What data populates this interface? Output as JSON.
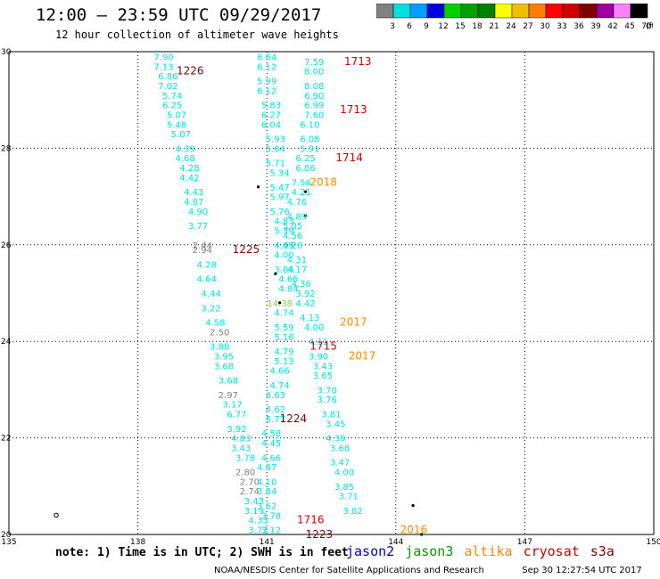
{
  "header": {
    "title": "12:00 – 23:59 UTC 09/29/2017",
    "subtitle": "12 hour collection of altimeter wave heights"
  },
  "colorbar": {
    "labels": [
      "3",
      "6",
      "9",
      "12",
      "15",
      "18",
      "21",
      "24",
      "27",
      "30",
      "33",
      "36",
      "39",
      "42",
      "45",
      "70"
    ],
    "unit": "(ft)",
    "colors": [
      "#808080",
      "#00e0e0",
      "#00a0ff",
      "#0000e0",
      "#00d000",
      "#00a000",
      "#008000",
      "#ffff00",
      "#f0c000",
      "#ff8000",
      "#ff0000",
      "#d00000",
      "#800000",
      "#a000a0",
      "#ff80ff",
      "#000000"
    ]
  },
  "axes": {
    "x_ticks": [
      "135",
      "138",
      "141",
      "144",
      "147",
      "150"
    ],
    "y_ticks": [
      "30",
      "28",
      "26",
      "24",
      "22",
      "20"
    ]
  },
  "legend": {
    "note": "note: 1) Time is in UTC; 2) SWH is in feet",
    "missions": [
      {
        "name": "jason2",
        "color": "#0000cc"
      },
      {
        "name": "jason3",
        "color": "#009900"
      },
      {
        "name": "altika",
        "color": "#ff8800"
      },
      {
        "name": "cryosat",
        "color": "#cc0000"
      },
      {
        "name": "s3a",
        "color": "#800000"
      }
    ]
  },
  "footer": {
    "credit": "NOAA/NESDIS Center for Satellite Applications and Research",
    "timestamp": "Sep 30 12:27:54 UTC 2017"
  },
  "chart_data": {
    "type": "scatter",
    "x_unit": "longitude (°E)",
    "y_unit": "latitude (°N)",
    "xlim": [
      135,
      150
    ],
    "ylim": [
      20,
      30
    ],
    "value_unit": "SWH (ft)",
    "time_labels": [
      {
        "text": "1226",
        "lon": 138.9,
        "lat": 29.6,
        "color": "#800000"
      },
      {
        "text": "1713",
        "lon": 142.8,
        "lat": 29.8,
        "color": "#cc0000"
      },
      {
        "text": "1713",
        "lon": 142.7,
        "lat": 28.8,
        "color": "#cc0000"
      },
      {
        "text": "1714",
        "lon": 142.6,
        "lat": 27.8,
        "color": "#cc0000"
      },
      {
        "text": "2018",
        "lon": 142.0,
        "lat": 27.3,
        "color": "#ff8800"
      },
      {
        "text": "1225",
        "lon": 140.2,
        "lat": 25.9,
        "color": "#800000"
      },
      {
        "text": "2017",
        "lon": 142.7,
        "lat": 24.4,
        "color": "#ff8800"
      },
      {
        "text": "1715",
        "lon": 142.0,
        "lat": 23.9,
        "color": "#cc0000"
      },
      {
        "text": "2017",
        "lon": 142.9,
        "lat": 23.7,
        "color": "#ff8800"
      },
      {
        "text": "1224",
        "lon": 141.3,
        "lat": 22.4,
        "color": "#800000"
      },
      {
        "text": "1716",
        "lon": 141.7,
        "lat": 20.3,
        "color": "#cc0000"
      },
      {
        "text": "1223",
        "lon": 141.9,
        "lat": 20.0,
        "color": "#800000"
      },
      {
        "text": "2016",
        "lon": 144.1,
        "lat": 20.1,
        "color": "#ff8800"
      }
    ],
    "tracks": [
      {
        "name": "track-a",
        "points": [
          {
            "lon": 138.6,
            "lat": 29.9,
            "v": "7.90",
            "c": "#00e0e0"
          },
          {
            "lon": 138.6,
            "lat": 29.7,
            "v": "7.13",
            "c": "#00e0e0"
          },
          {
            "lon": 138.7,
            "lat": 29.5,
            "v": "6.86",
            "c": "#00e0e0"
          },
          {
            "lon": 138.7,
            "lat": 29.3,
            "v": "7.02",
            "c": "#00e0e0"
          },
          {
            "lon": 138.8,
            "lat": 29.1,
            "v": "5.74",
            "c": "#00e0e0"
          },
          {
            "lon": 138.8,
            "lat": 28.9,
            "v": "6.25",
            "c": "#00e0e0"
          },
          {
            "lon": 138.9,
            "lat": 28.7,
            "v": "5.07",
            "c": "#00e0e0"
          },
          {
            "lon": 138.9,
            "lat": 28.5,
            "v": "5.48",
            "c": "#00e0e0"
          },
          {
            "lon": 139.0,
            "lat": 28.3,
            "v": "5.07",
            "c": "#00e0e0"
          },
          {
            "lon": 139.1,
            "lat": 28.0,
            "v": "4.39",
            "c": "#00e0e0"
          },
          {
            "lon": 139.1,
            "lat": 27.8,
            "v": "4.68",
            "c": "#00e0e0"
          },
          {
            "lon": 139.2,
            "lat": 27.6,
            "v": "4.28",
            "c": "#00e0e0"
          },
          {
            "lon": 139.2,
            "lat": 27.4,
            "v": "4.42",
            "c": "#00e0e0"
          },
          {
            "lon": 139.3,
            "lat": 27.1,
            "v": "4.43",
            "c": "#00e0e0"
          },
          {
            "lon": 139.3,
            "lat": 26.9,
            "v": "4.87",
            "c": "#00e0e0"
          },
          {
            "lon": 139.4,
            "lat": 26.7,
            "v": "4.90",
            "c": "#00e0e0"
          },
          {
            "lon": 139.4,
            "lat": 26.4,
            "v": "3.77",
            "c": "#00e0e0"
          },
          {
            "lon": 139.5,
            "lat": 26.0,
            "v": "2.44",
            "c": "#808080"
          },
          {
            "lon": 139.5,
            "lat": 25.9,
            "v": "2.94",
            "c": "#808080"
          },
          {
            "lon": 139.6,
            "lat": 25.6,
            "v": "4.28",
            "c": "#00e0e0"
          },
          {
            "lon": 139.6,
            "lat": 25.3,
            "v": "4.64",
            "c": "#00e0e0"
          },
          {
            "lon": 139.7,
            "lat": 25.0,
            "v": "4.44",
            "c": "#00e0e0"
          },
          {
            "lon": 139.7,
            "lat": 24.7,
            "v": "3.22",
            "c": "#00e0e0"
          },
          {
            "lon": 139.8,
            "lat": 24.4,
            "v": "4.58",
            "c": "#00e0e0"
          },
          {
            "lon": 139.9,
            "lat": 24.2,
            "v": "2.50",
            "c": "#808080"
          },
          {
            "lon": 139.9,
            "lat": 23.9,
            "v": "3.88",
            "c": "#00e0e0"
          },
          {
            "lon": 140.0,
            "lat": 23.7,
            "v": "3.95",
            "c": "#00e0e0"
          },
          {
            "lon": 140.0,
            "lat": 23.5,
            "v": "3.68",
            "c": "#00e0e0"
          },
          {
            "lon": 140.1,
            "lat": 23.2,
            "v": "3.68",
            "c": "#00e0e0"
          },
          {
            "lon": 140.1,
            "lat": 22.9,
            "v": "2.97",
            "c": "#808080"
          },
          {
            "lon": 140.2,
            "lat": 22.7,
            "v": "3.17",
            "c": "#00e0e0"
          },
          {
            "lon": 140.3,
            "lat": 22.5,
            "v": "6.77",
            "c": "#00e0e0"
          },
          {
            "lon": 140.3,
            "lat": 22.2,
            "v": "3.92",
            "c": "#00e0e0"
          },
          {
            "lon": 140.4,
            "lat": 22.0,
            "v": "4.83",
            "c": "#00e0e0"
          },
          {
            "lon": 140.4,
            "lat": 21.8,
            "v": "3.43",
            "c": "#00e0e0"
          },
          {
            "lon": 140.5,
            "lat": 21.6,
            "v": "3.78",
            "c": "#00e0e0"
          },
          {
            "lon": 140.5,
            "lat": 21.3,
            "v": "2.80",
            "c": "#808080"
          },
          {
            "lon": 140.6,
            "lat": 21.1,
            "v": "2.70",
            "c": "#808080"
          },
          {
            "lon": 140.6,
            "lat": 20.9,
            "v": "2.74",
            "c": "#808080"
          },
          {
            "lon": 140.7,
            "lat": 20.7,
            "v": "3.43",
            "c": "#00e0e0"
          },
          {
            "lon": 140.7,
            "lat": 20.5,
            "v": "3.19",
            "c": "#00e0e0"
          },
          {
            "lon": 140.8,
            "lat": 20.3,
            "v": "4.33",
            "c": "#00e0e0"
          },
          {
            "lon": 140.8,
            "lat": 20.1,
            "v": "3.72",
            "c": "#00e0e0"
          }
        ]
      },
      {
        "name": "track-b",
        "points": [
          {
            "lon": 141.0,
            "lat": 29.9,
            "v": "6.64",
            "c": "#00e0e0"
          },
          {
            "lon": 141.0,
            "lat": 29.7,
            "v": "6.12",
            "c": "#00e0e0"
          },
          {
            "lon": 141.0,
            "lat": 29.4,
            "v": "5.99",
            "c": "#00e0e0"
          },
          {
            "lon": 141.0,
            "lat": 29.2,
            "v": "6.12",
            "c": "#00e0e0"
          },
          {
            "lon": 141.1,
            "lat": 28.9,
            "v": "5.83",
            "c": "#00e0e0"
          },
          {
            "lon": 141.1,
            "lat": 28.7,
            "v": "6.27",
            "c": "#00e0e0"
          },
          {
            "lon": 141.1,
            "lat": 28.5,
            "v": "6.04",
            "c": "#00e0e0"
          },
          {
            "lon": 141.2,
            "lat": 28.2,
            "v": "5.93",
            "c": "#00e0e0"
          },
          {
            "lon": 141.2,
            "lat": 28.0,
            "v": "5.64",
            "c": "#00e0e0"
          },
          {
            "lon": 141.2,
            "lat": 27.7,
            "v": "5.71",
            "c": "#00e0e0"
          },
          {
            "lon": 141.3,
            "lat": 27.5,
            "v": "5.34",
            "c": "#00e0e0"
          },
          {
            "lon": 141.3,
            "lat": 27.2,
            "v": "5.47",
            "c": "#00e0e0"
          },
          {
            "lon": 141.3,
            "lat": 27.0,
            "v": "5.97",
            "c": "#00e0e0"
          },
          {
            "lon": 141.3,
            "lat": 26.7,
            "v": "5.76",
            "c": "#00e0e0"
          },
          {
            "lon": 141.4,
            "lat": 26.5,
            "v": "4.83",
            "c": "#00e0e0"
          },
          {
            "lon": 141.4,
            "lat": 26.3,
            "v": "5.39",
            "c": "#00e0e0"
          },
          {
            "lon": 141.4,
            "lat": 26.0,
            "v": "4.69",
            "c": "#00e0e0"
          },
          {
            "lon": 141.4,
            "lat": 25.8,
            "v": "4.00",
            "c": "#00e0e0"
          },
          {
            "lon": 141.4,
            "lat": 25.5,
            "v": "3.84",
            "c": "#00e0e0"
          },
          {
            "lon": 141.5,
            "lat": 25.3,
            "v": "4.66",
            "c": "#00e0e0"
          },
          {
            "lon": 141.5,
            "lat": 25.1,
            "v": "4.84",
            "c": "#00e0e0"
          },
          {
            "lon": 141.3,
            "lat": 24.8,
            "v": "14.38",
            "c": "#80d040"
          },
          {
            "lon": 141.4,
            "lat": 24.6,
            "v": "4.74",
            "c": "#00e0e0"
          },
          {
            "lon": 141.4,
            "lat": 24.3,
            "v": "5.59",
            "c": "#00e0e0"
          },
          {
            "lon": 141.4,
            "lat": 24.1,
            "v": "5.16",
            "c": "#00e0e0"
          },
          {
            "lon": 141.4,
            "lat": 23.8,
            "v": "4.79",
            "c": "#00e0e0"
          },
          {
            "lon": 141.4,
            "lat": 23.6,
            "v": "5.13",
            "c": "#00e0e0"
          },
          {
            "lon": 141.3,
            "lat": 23.4,
            "v": "4.66",
            "c": "#00e0e0"
          },
          {
            "lon": 141.3,
            "lat": 23.1,
            "v": "4.74",
            "c": "#00e0e0"
          },
          {
            "lon": 141.2,
            "lat": 22.9,
            "v": "4.63",
            "c": "#00e0e0"
          },
          {
            "lon": 141.2,
            "lat": 22.6,
            "v": "4.62",
            "c": "#00e0e0"
          },
          {
            "lon": 141.2,
            "lat": 22.4,
            "v": "5.77",
            "c": "#00e0e0"
          },
          {
            "lon": 141.1,
            "lat": 22.1,
            "v": "4.58",
            "c": "#00e0e0"
          },
          {
            "lon": 141.1,
            "lat": 21.9,
            "v": "4.45",
            "c": "#00e0e0"
          },
          {
            "lon": 141.1,
            "lat": 21.6,
            "v": "4.66",
            "c": "#00e0e0"
          },
          {
            "lon": 141.0,
            "lat": 21.4,
            "v": "4.67",
            "c": "#00e0e0"
          },
          {
            "lon": 141.0,
            "lat": 21.1,
            "v": "4.10",
            "c": "#00e0e0"
          },
          {
            "lon": 141.0,
            "lat": 20.9,
            "v": "3.84",
            "c": "#00e0e0"
          },
          {
            "lon": 141.0,
            "lat": 20.6,
            "v": "3.62",
            "c": "#00e0e0"
          },
          {
            "lon": 141.1,
            "lat": 20.4,
            "v": "3.78",
            "c": "#00e0e0"
          },
          {
            "lon": 141.1,
            "lat": 20.1,
            "v": "3.12",
            "c": "#00e0e0"
          }
        ]
      },
      {
        "name": "track-c",
        "points": [
          {
            "lon": 142.1,
            "lat": 29.8,
            "v": "7.59",
            "c": "#00e0e0"
          },
          {
            "lon": 142.1,
            "lat": 29.6,
            "v": "8.00",
            "c": "#00e0e0"
          },
          {
            "lon": 142.1,
            "lat": 29.3,
            "v": "8.08",
            "c": "#00e0e0"
          },
          {
            "lon": 142.1,
            "lat": 29.1,
            "v": "6.90",
            "c": "#00e0e0"
          },
          {
            "lon": 142.1,
            "lat": 28.9,
            "v": "6.99",
            "c": "#00e0e0"
          },
          {
            "lon": 142.1,
            "lat": 28.7,
            "v": "7.60",
            "c": "#00e0e0"
          },
          {
            "lon": 142.0,
            "lat": 28.5,
            "v": "6.10",
            "c": "#00e0e0"
          },
          {
            "lon": 142.0,
            "lat": 28.2,
            "v": "6.08",
            "c": "#00e0e0"
          },
          {
            "lon": 142.0,
            "lat": 28.0,
            "v": "5.91",
            "c": "#00e0e0"
          },
          {
            "lon": 141.9,
            "lat": 27.8,
            "v": "6.25",
            "c": "#00e0e0"
          },
          {
            "lon": 141.9,
            "lat": 27.6,
            "v": "6.86",
            "c": "#00e0e0"
          },
          {
            "lon": 141.8,
            "lat": 27.3,
            "v": "7.56",
            "c": "#00e0e0"
          },
          {
            "lon": 141.8,
            "lat": 27.1,
            "v": "4.21",
            "c": "#00e0e0"
          },
          {
            "lon": 141.7,
            "lat": 26.9,
            "v": "4.76",
            "c": "#00e0e0"
          },
          {
            "lon": 141.7,
            "lat": 26.6,
            "v": "4.89",
            "c": "#00e0e0"
          },
          {
            "lon": 141.6,
            "lat": 26.4,
            "v": "5.05",
            "c": "#00e0e0"
          },
          {
            "lon": 141.6,
            "lat": 26.2,
            "v": "4.56",
            "c": "#00e0e0"
          },
          {
            "lon": 141.6,
            "lat": 26.0,
            "v": "4.20",
            "c": "#00e0e0"
          },
          {
            "lon": 141.7,
            "lat": 25.7,
            "v": "4.31",
            "c": "#00e0e0"
          },
          {
            "lon": 141.7,
            "lat": 25.5,
            "v": "4.17",
            "c": "#00e0e0"
          },
          {
            "lon": 141.8,
            "lat": 25.2,
            "v": "4.36",
            "c": "#00e0e0"
          },
          {
            "lon": 141.9,
            "lat": 25.0,
            "v": "3.92",
            "c": "#00e0e0"
          },
          {
            "lon": 141.9,
            "lat": 24.8,
            "v": "4.42",
            "c": "#00e0e0"
          },
          {
            "lon": 142.0,
            "lat": 24.5,
            "v": "4.13",
            "c": "#00e0e0"
          },
          {
            "lon": 142.1,
            "lat": 24.3,
            "v": "4.00",
            "c": "#00e0e0"
          },
          {
            "lon": 142.2,
            "lat": 24.0,
            "v": "4.11",
            "c": "#00e0e0"
          },
          {
            "lon": 142.2,
            "lat": 23.7,
            "v": "3.90",
            "c": "#00e0e0"
          },
          {
            "lon": 142.3,
            "lat": 23.5,
            "v": "3.43",
            "c": "#00e0e0"
          },
          {
            "lon": 142.3,
            "lat": 23.3,
            "v": "3.65",
            "c": "#00e0e0"
          },
          {
            "lon": 142.4,
            "lat": 23.0,
            "v": "3.70",
            "c": "#00e0e0"
          },
          {
            "lon": 142.4,
            "lat": 22.8,
            "v": "3.76",
            "c": "#00e0e0"
          },
          {
            "lon": 142.5,
            "lat": 22.5,
            "v": "3.81",
            "c": "#00e0e0"
          },
          {
            "lon": 142.6,
            "lat": 22.3,
            "v": "3.45",
            "c": "#00e0e0"
          },
          {
            "lon": 142.6,
            "lat": 22.0,
            "v": "4.39",
            "c": "#00e0e0"
          },
          {
            "lon": 142.7,
            "lat": 21.8,
            "v": "3.68",
            "c": "#00e0e0"
          },
          {
            "lon": 142.7,
            "lat": 21.5,
            "v": "3.47",
            "c": "#00e0e0"
          },
          {
            "lon": 142.8,
            "lat": 21.3,
            "v": "4.00",
            "c": "#00e0e0"
          },
          {
            "lon": 142.8,
            "lat": 21.0,
            "v": "3.85",
            "c": "#00e0e0"
          },
          {
            "lon": 142.9,
            "lat": 20.8,
            "v": "3.71",
            "c": "#00e0e0"
          },
          {
            "lon": 143.0,
            "lat": 20.5,
            "v": "3.82",
            "c": "#00e0e0"
          }
        ]
      }
    ],
    "islands": [
      {
        "lon": 140.8,
        "lat": 27.2
      },
      {
        "lon": 141.9,
        "lat": 27.1
      },
      {
        "lon": 141.9,
        "lat": 26.6
      },
      {
        "lon": 141.2,
        "lat": 25.4
      },
      {
        "lon": 141.3,
        "lat": 24.8
      },
      {
        "lon": 144.4,
        "lat": 20.6
      },
      {
        "lon": 144.6,
        "lat": 20.0
      }
    ],
    "open_markers": [
      {
        "lon": 136.1,
        "lat": 20.4
      }
    ]
  }
}
